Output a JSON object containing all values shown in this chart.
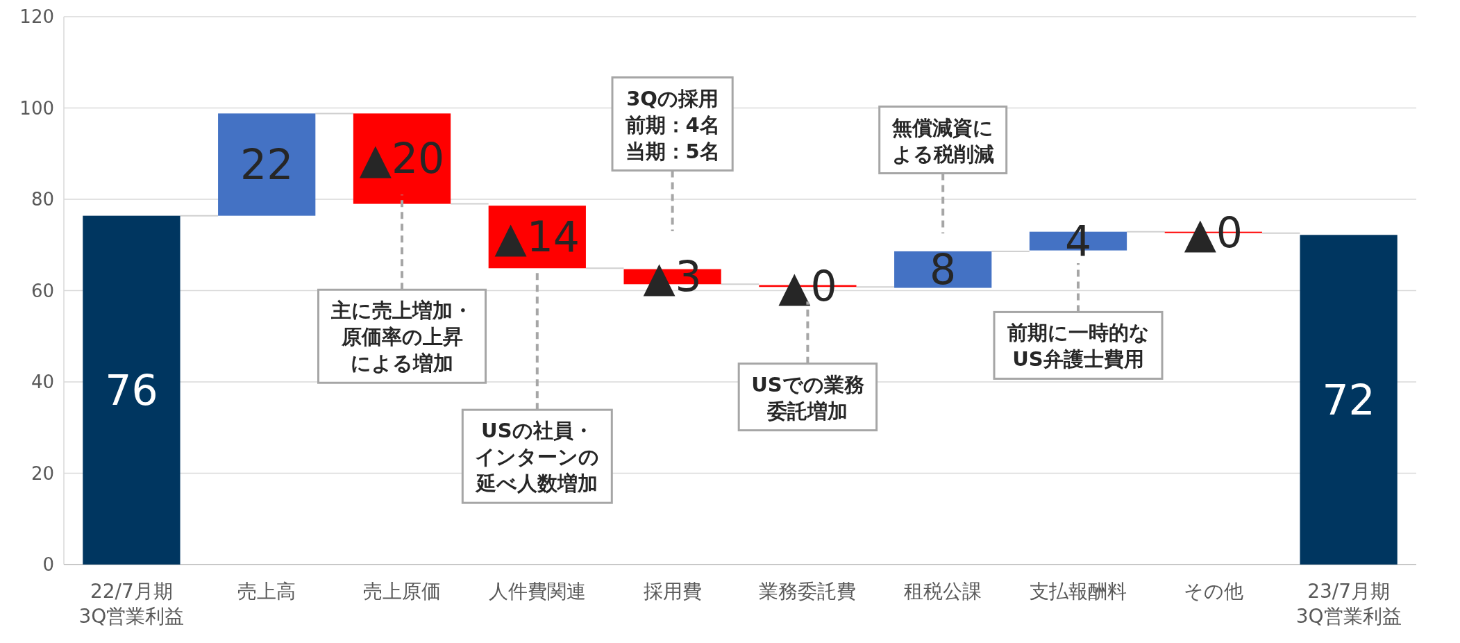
{
  "chart_data": {
    "type": "bar",
    "categories": [
      "22/7月期\n3Q営業利益",
      "売上高",
      "売上原価",
      "人件費関連",
      "採用費",
      "業務委託費",
      "租税公課",
      "支払報酬料",
      "その他",
      "23/7月期\n3Q営業利益"
    ],
    "base": [
      0,
      76.4,
      79.0,
      64.9,
      61.4,
      60.8,
      60.6,
      68.8,
      72.6,
      0
    ],
    "values": [
      76.4,
      22.4,
      19.8,
      13.7,
      3.3,
      0.4,
      8.0,
      4.1,
      0.3,
      72.2
    ],
    "colors": [
      "#003660",
      "#4472c4",
      "#ff0000",
      "#ff0000",
      "#ff0000",
      "#ff0000",
      "#4472c4",
      "#4472c4",
      "#ff0000",
      "#003660"
    ],
    "value_labels": [
      "76",
      "22",
      "▲20",
      "▲14",
      "▲3",
      "▲0",
      "8",
      "4",
      "▲0",
      "72"
    ],
    "ylim": [
      0,
      120
    ],
    "yticks": [
      0,
      20,
      40,
      60,
      80,
      100,
      120
    ],
    "grid": "y",
    "annotations": [
      "主に売上増加・原価率の上昇による増加",
      {
        "text": "USの社員・インターンの延べ人数増加",
        "x": "人件費関連",
        "y": 64.9
      },
      "3Qの採用前期：4名当期：5名",
      "USでの業務委託増加",
      "無償減資による税削減",
      "前期に一時的なUS弁護士費用"
    ]
  }
}
